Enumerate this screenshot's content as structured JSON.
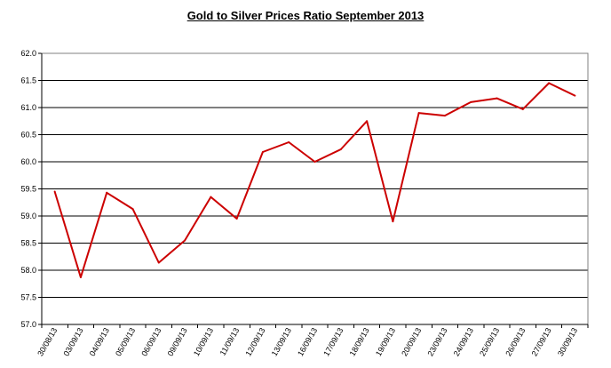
{
  "chart_data": {
    "type": "line",
    "title": "Gold to Silver Prices Ratio September  2013",
    "xlabel": "",
    "ylabel": "",
    "ylim": [
      57.0,
      62.0
    ],
    "y_ticks": [
      "62.0",
      "61.5",
      "61.0",
      "60.5",
      "60.0",
      "59.5",
      "59.0",
      "58.5",
      "58.0",
      "57.5",
      "57.0"
    ],
    "grid": true,
    "legend": "none",
    "line_color": "#cc0000",
    "categories": [
      "30/08/13",
      "03/09/13",
      "04/09/13",
      "05/09/13",
      "06/09/13",
      "09/09/13",
      "10/09/13",
      "11/09/13",
      "12/09/13",
      "13/09/13",
      "16/09/13",
      "17/09/13",
      "18/09/13",
      "19/09/13",
      "20/09/13",
      "23/09/13",
      "24/09/13",
      "25/09/13",
      "26/09/13",
      "27/09/13",
      "30/09/13"
    ],
    "series": [
      {
        "values": [
          59.45,
          57.87,
          59.43,
          59.13,
          58.14,
          58.55,
          59.35,
          58.95,
          60.18,
          60.36,
          60.0,
          60.23,
          60.75,
          58.9,
          60.9,
          60.85,
          61.1,
          61.17,
          60.97,
          61.45,
          61.22
        ]
      }
    ]
  }
}
